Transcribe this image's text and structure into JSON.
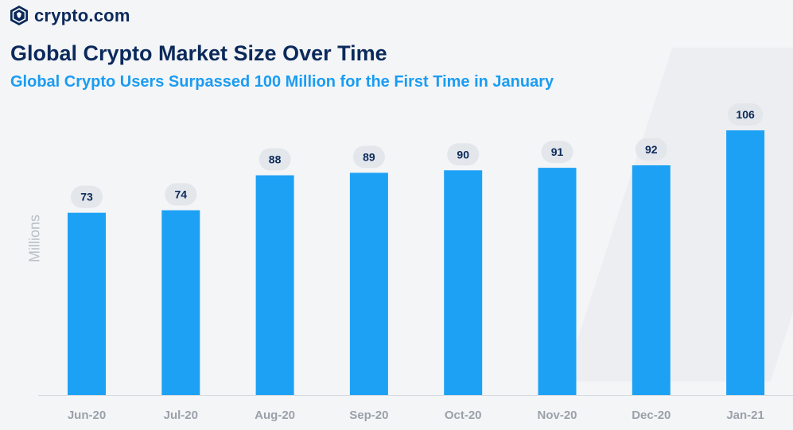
{
  "brand": {
    "name": "crypto.com",
    "icon": "crypto-com-lion-shield-icon"
  },
  "chart_data": {
    "type": "bar",
    "title": "Global Crypto Market Size Over Time",
    "subtitle": "Global Crypto Users Surpassed 100 Million for the First Time in January",
    "xlabel": "",
    "ylabel": "Millions",
    "categories": [
      "Jun-20",
      "Jul-20",
      "Aug-20",
      "Sep-20",
      "Oct-20",
      "Nov-20",
      "Dec-20",
      "Jan-21"
    ],
    "values": [
      73,
      74,
      88,
      89,
      90,
      91,
      92,
      106
    ],
    "ylim": [
      0,
      106
    ],
    "grid": false,
    "legend": "none",
    "colors": {
      "bar": "#1da1f5",
      "title": "#0b2a5b",
      "subtitle": "#1a9cf2"
    }
  }
}
